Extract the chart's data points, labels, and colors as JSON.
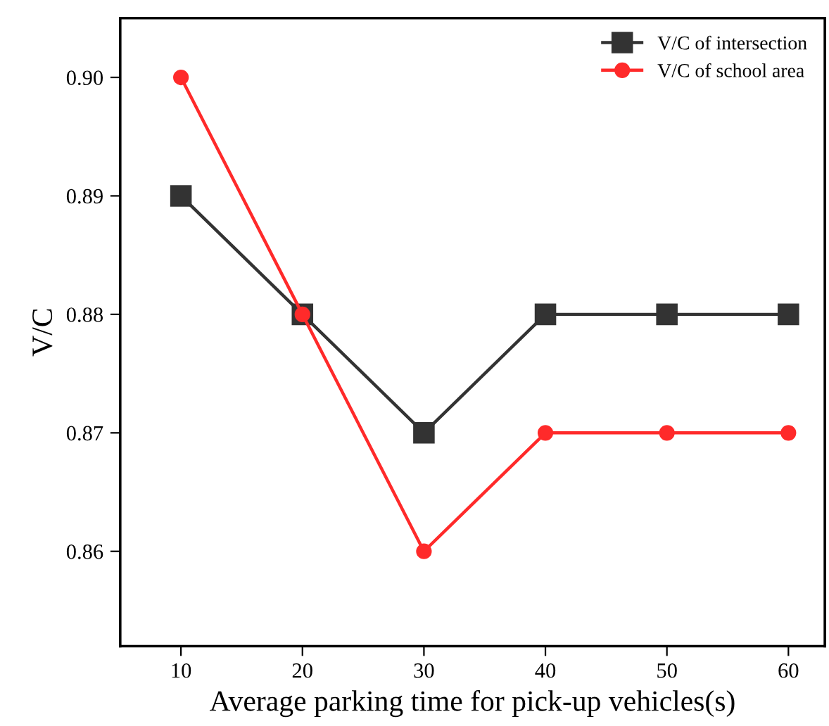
{
  "chart_data": {
    "type": "line",
    "xlabel": "Average parking time for pick-up vehicles(s)",
    "ylabel": "V/C",
    "x": [
      10,
      20,
      30,
      40,
      50,
      60
    ],
    "series": [
      {
        "name": "V/C of intersection",
        "color": "#333333",
        "values": [
          0.89,
          0.88,
          0.87,
          0.88,
          0.88,
          0.88
        ],
        "marker": "square"
      },
      {
        "name": "V/C of school area",
        "color": "#ff2a2a",
        "values": [
          0.9,
          0.88,
          0.86,
          0.87,
          0.87,
          0.87
        ],
        "marker": "circle"
      }
    ],
    "xlim": [
      5,
      63
    ],
    "xticks": [
      10,
      20,
      30,
      40,
      50,
      60
    ],
    "ylim": [
      0.852,
      0.905
    ],
    "yticks": [
      {
        "value": 0.86,
        "label": "0.86"
      },
      {
        "value": 0.87,
        "label": "0.87"
      },
      {
        "value": 0.88,
        "label": "0.88"
      },
      {
        "value": 0.89,
        "label": "0.89"
      },
      {
        "value": 0.9,
        "label": "0.90"
      }
    ],
    "grid": false,
    "legend": "top right",
    "line_style": "solid"
  }
}
